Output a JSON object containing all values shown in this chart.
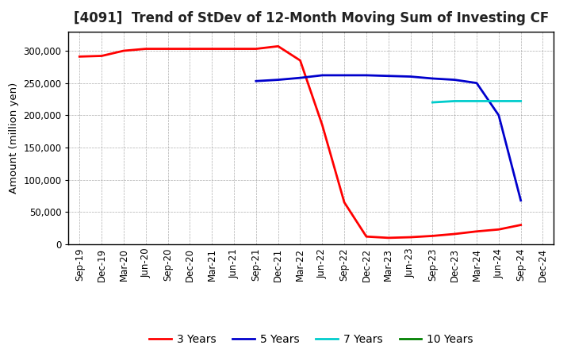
{
  "title": "[4091]  Trend of StDev of 12-Month Moving Sum of Investing CF",
  "ylabel": "Amount (million yen)",
  "background_color": "#ffffff",
  "grid_color": "#999999",
  "x_labels": [
    "Sep-19",
    "Dec-19",
    "Mar-20",
    "Jun-20",
    "Sep-20",
    "Dec-20",
    "Mar-21",
    "Jun-21",
    "Sep-21",
    "Dec-21",
    "Mar-22",
    "Jun-22",
    "Sep-22",
    "Dec-22",
    "Mar-23",
    "Jun-23",
    "Sep-23",
    "Dec-23",
    "Mar-24",
    "Jun-24",
    "Sep-24",
    "Dec-24"
  ],
  "series": [
    {
      "label": "3 Years",
      "color": "#ff0000",
      "data_x": [
        0,
        1,
        2,
        3,
        4,
        5,
        6,
        7,
        8,
        9,
        10,
        11,
        12,
        13,
        14,
        15,
        16,
        17,
        18,
        19,
        20
      ],
      "data_y": [
        291000,
        292000,
        300000,
        303000,
        303000,
        303000,
        303000,
        303000,
        303000,
        307000,
        285000,
        185000,
        65000,
        12000,
        10000,
        11000,
        13000,
        16000,
        20000,
        23000,
        30000
      ]
    },
    {
      "label": "5 Years",
      "color": "#0000cc",
      "data_x": [
        8,
        9,
        10,
        11,
        12,
        13,
        14,
        15,
        16,
        17,
        18,
        19,
        20
      ],
      "data_y": [
        253000,
        255000,
        258000,
        262000,
        262000,
        262000,
        261000,
        260000,
        257000,
        255000,
        250000,
        200000,
        68000
      ]
    },
    {
      "label": "7 Years",
      "color": "#00cccc",
      "data_x": [
        16,
        17,
        18,
        19,
        20
      ],
      "data_y": [
        220000,
        222000,
        222000,
        222000,
        222000
      ]
    },
    {
      "label": "10 Years",
      "color": "#008000",
      "data_x": [],
      "data_y": []
    }
  ],
  "ylim": [
    0,
    330000
  ],
  "yticks": [
    0,
    50000,
    100000,
    150000,
    200000,
    250000,
    300000
  ],
  "title_fontsize": 12,
  "legend_fontsize": 10,
  "tick_fontsize": 8.5,
  "line_width": 2.0
}
